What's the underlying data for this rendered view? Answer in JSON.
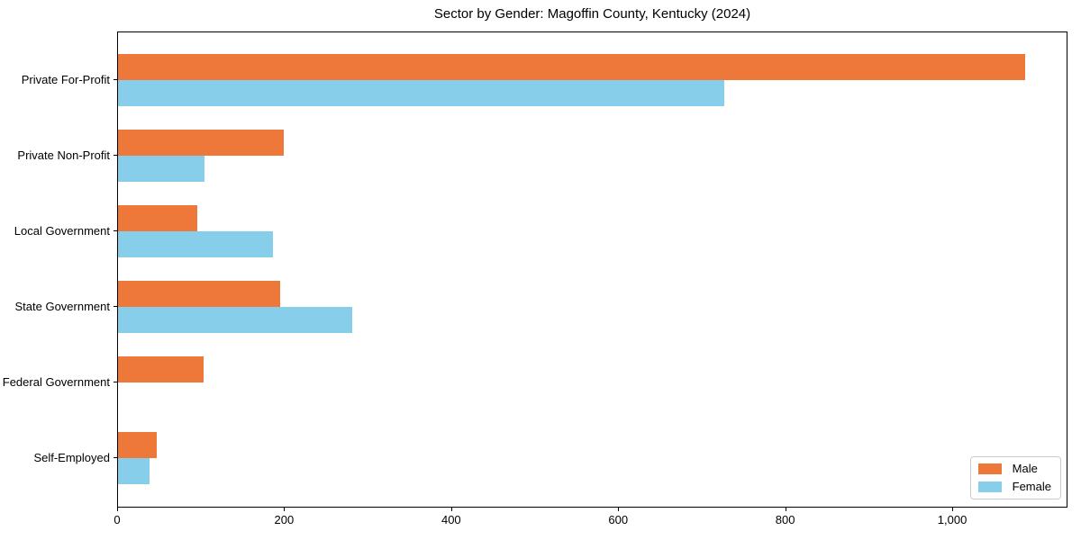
{
  "chart_data": {
    "type": "bar",
    "orientation": "horizontal",
    "title": "Sector by Gender: Magoffin County, Kentucky (2024)",
    "categories": [
      "Private For-Profit",
      "Private Non-Profit",
      "Local Government",
      "State Government",
      "Federal Government",
      "Self-Employed"
    ],
    "series": [
      {
        "name": "Male",
        "color": "#ED7839",
        "values": [
          1086,
          198,
          95,
          194,
          102,
          46
        ]
      },
      {
        "name": "Female",
        "color": "#87CEEB",
        "values": [
          726,
          104,
          186,
          280,
          0,
          38
        ]
      }
    ],
    "xlabel": "",
    "ylabel": "",
    "xlim": [
      0,
      1138
    ],
    "xticks": [
      0,
      200,
      400,
      600,
      800,
      1000
    ],
    "xtick_labels": [
      "0",
      "200",
      "400",
      "600",
      "800",
      "1,000"
    ],
    "grid": false,
    "legend_position": "lower right",
    "background_color": "#ffffff",
    "spine_color": "#000000"
  }
}
